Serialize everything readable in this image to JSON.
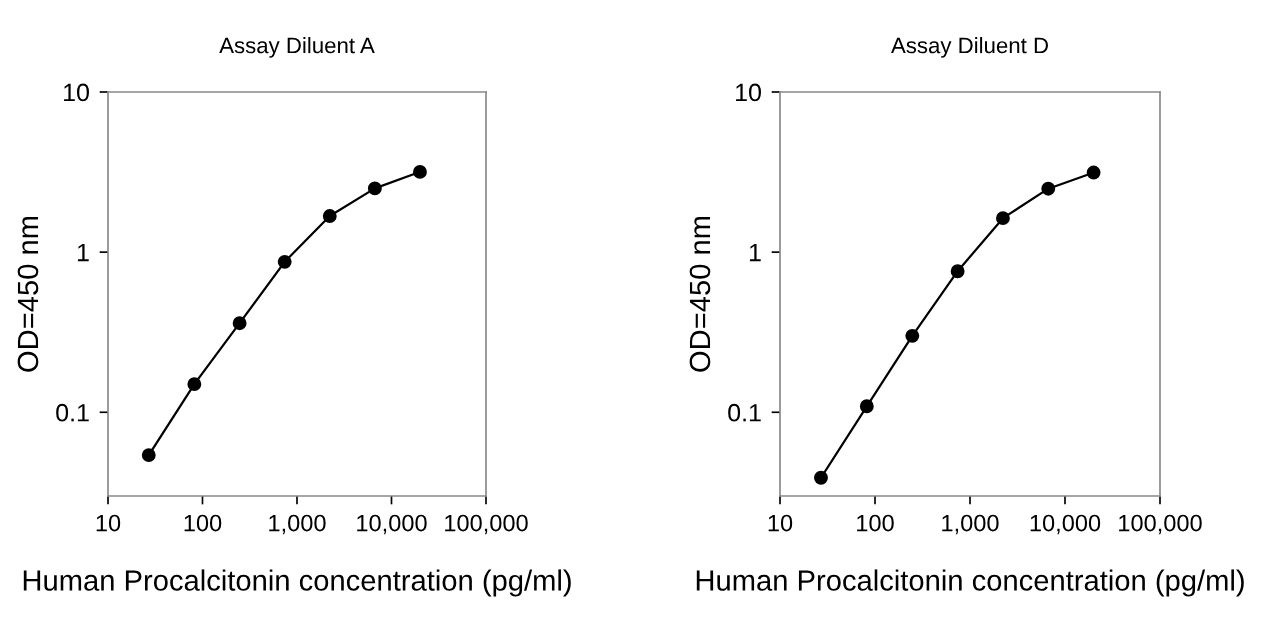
{
  "chart_data": [
    {
      "type": "line",
      "title": "Assay Diluent A",
      "xlabel": "Human Procalcitonin concentration (pg/ml)",
      "ylabel": "OD=450 nm",
      "log": "xy",
      "marker": "circle",
      "line_style": "solid",
      "grid": false,
      "legend": false,
      "x": [
        27,
        82,
        247,
        741,
        2222,
        6667,
        20000
      ],
      "series": [
        {
          "color": "#000000",
          "values": [
            0.054,
            0.15,
            0.36,
            0.87,
            1.68,
            2.5,
            3.17
          ]
        }
      ],
      "xlim": [
        10,
        100000
      ],
      "ylim": [
        0.03,
        10
      ],
      "xticks": [
        10,
        100,
        {
          "value": 1000,
          "label": "1,000"
        },
        {
          "value": 10000,
          "label": "10,000"
        },
        {
          "value": 100000,
          "label": "100,000"
        }
      ],
      "yticks": [
        0.1,
        1,
        10
      ]
    },
    {
      "type": "line",
      "title": "Assay Diluent D",
      "xlabel": "Human Procalcitonin concentration (pg/ml)",
      "ylabel": "OD=450 nm",
      "log": "xy",
      "marker": "circle",
      "line_style": "solid",
      "grid": false,
      "legend": false,
      "x": [
        27,
        82,
        247,
        741,
        2222,
        6667,
        20000
      ],
      "series": [
        {
          "color": "#000000",
          "values": [
            0.039,
            0.109,
            0.3,
            0.76,
            1.63,
            2.49,
            3.14
          ]
        }
      ],
      "xlim": [
        10,
        100000
      ],
      "ylim": [
        0.03,
        10
      ],
      "xticks": [
        10,
        100,
        {
          "value": 1000,
          "label": "1,000"
        },
        {
          "value": 10000,
          "label": "10,000"
        },
        {
          "value": 100000,
          "label": "100,000"
        }
      ],
      "yticks": [
        0.1,
        1,
        10
      ]
    }
  ]
}
